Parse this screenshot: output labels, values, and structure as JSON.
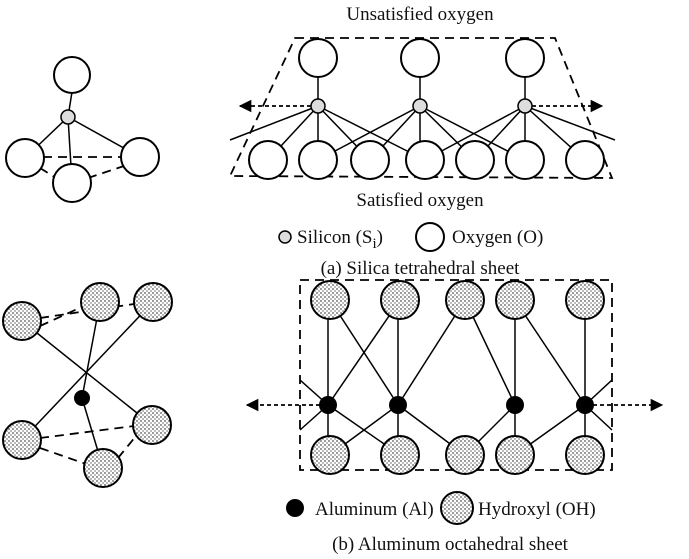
{
  "top": {
    "unsatisfied": "Unsatisfied oxygen",
    "satisfied": "Satisfied oxygen",
    "legend_silicon": {
      "label": "Silicon (S",
      "subscript": "i",
      "suffix": ")"
    },
    "legend_oxygen": "Oxygen (O)",
    "caption": "(a) Silica tetrahedral sheet"
  },
  "bottom": {
    "legend_aluminum": "Aluminum (Al)",
    "legend_hydroxyl": "Hydroxyl (OH)",
    "caption": "(b) Aluminum octahedral sheet"
  }
}
